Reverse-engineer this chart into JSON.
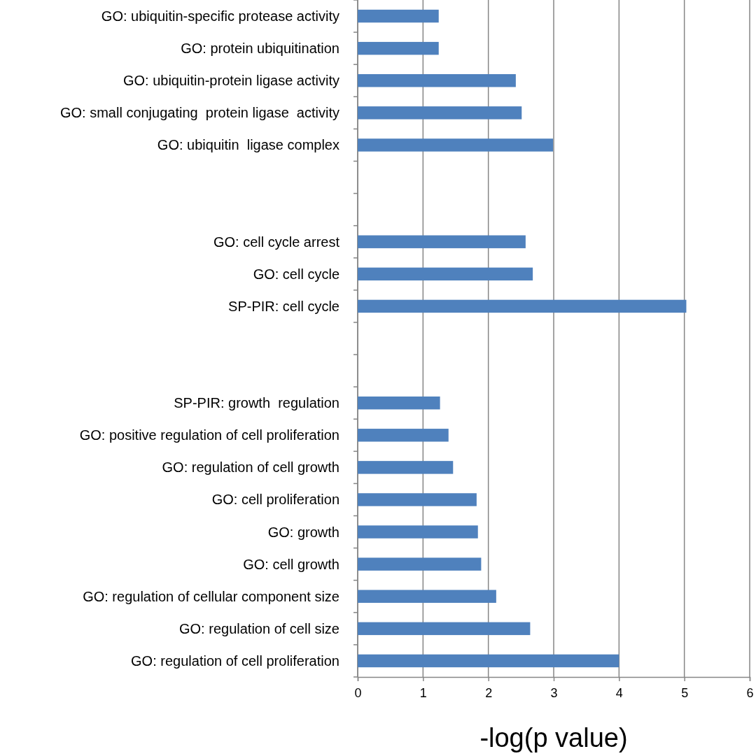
{
  "chart_data": {
    "type": "bar",
    "orientation": "horizontal",
    "xlabel": "-log(p value)",
    "categories": [
      "GO: ubiquitin-specific protease activity",
      "GO: protein ubiquitination",
      "GO: ubiquitin-protein ligase activity",
      "GO: small conjugating  protein ligase  activity",
      "GO: ubiquitin  ligase complex",
      null,
      null,
      "GO: cell cycle arrest",
      "GO: cell cycle",
      "SP-PIR: cell cycle",
      null,
      null,
      "SP-PIR: growth  regulation",
      "GO: positive regulation of cell proliferation",
      "GO: regulation of cell growth",
      "GO: cell proliferation",
      "GO: growth",
      "GO: cell growth",
      "GO: regulation of cellular component size",
      "GO: regulation of cell size",
      "GO: regulation of cell proliferation"
    ],
    "series": [
      {
        "color": "#4f81bd",
        "values": [
          1.24,
          1.24,
          2.42,
          2.51,
          2.99,
          null,
          null,
          2.57,
          2.68,
          5.03,
          null,
          null,
          1.26,
          1.39,
          1.46,
          1.82,
          1.84,
          1.89,
          2.12,
          2.64,
          4.0
        ]
      }
    ],
    "xlim": [
      0,
      6
    ],
    "xticks": [
      0,
      1,
      2,
      3,
      4,
      5,
      6
    ],
    "grid": "x"
  }
}
